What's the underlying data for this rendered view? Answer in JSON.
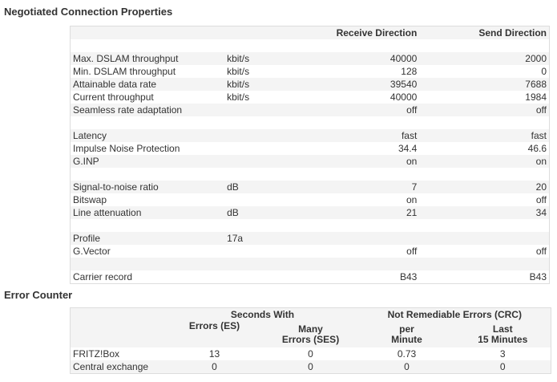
{
  "negotiated": {
    "title": "Negotiated Connection Properties",
    "headers": {
      "label": "",
      "unit": "",
      "receive": "Receive Direction",
      "send": "Send Direction"
    },
    "rows": [
      {
        "label": "",
        "unit": "",
        "rx": "",
        "tx": ""
      },
      {
        "label": "Max. DSLAM throughput",
        "unit": "kbit/s",
        "rx": "40000",
        "tx": "2000"
      },
      {
        "label": "Min. DSLAM throughput",
        "unit": "kbit/s",
        "rx": "128",
        "tx": "0"
      },
      {
        "label": "Attainable data rate",
        "unit": "kbit/s",
        "rx": "39540",
        "tx": "7688"
      },
      {
        "label": "Current throughput",
        "unit": "kbit/s",
        "rx": "40000",
        "tx": "1984"
      },
      {
        "label": "Seamless rate adaptation",
        "unit": "",
        "rx": "off",
        "tx": "off"
      },
      {
        "label": "",
        "unit": "",
        "rx": "",
        "tx": ""
      },
      {
        "label": "Latency",
        "unit": "",
        "rx": "fast",
        "tx": "fast"
      },
      {
        "label": "Impulse Noise Protection",
        "unit": "",
        "rx": "34.4",
        "tx": "46.6"
      },
      {
        "label": "G.INP",
        "unit": "",
        "rx": "on",
        "tx": "on"
      },
      {
        "label": "",
        "unit": "",
        "rx": "",
        "tx": ""
      },
      {
        "label": "Signal-to-noise ratio",
        "unit": "dB",
        "rx": "7",
        "tx": "20"
      },
      {
        "label": "Bitswap",
        "unit": "",
        "rx": "on",
        "tx": "off"
      },
      {
        "label": "Line attenuation",
        "unit": "dB",
        "rx": "21",
        "tx": "34"
      },
      {
        "label": "",
        "unit": "",
        "rx": "",
        "tx": ""
      },
      {
        "label": "Profile",
        "unit": "17a",
        "rx": "",
        "tx": ""
      },
      {
        "label": "G.Vector",
        "unit": "",
        "rx": "off",
        "tx": "off"
      },
      {
        "label": "",
        "unit": "",
        "rx": "",
        "tx": ""
      },
      {
        "label": "Carrier record",
        "unit": "",
        "rx": "B43",
        "tx": "B43"
      }
    ]
  },
  "errors": {
    "title": "Error Counter",
    "group1": "Seconds With",
    "group2": "Not Remediable Errors (CRC)",
    "col_es": "Errors (ES)",
    "col_ses_1": "Many",
    "col_ses_2": "Errors (SES)",
    "col_pm_1": "per",
    "col_pm_2": "Minute",
    "col_l15_1": "Last",
    "col_l15_2": "15 Minutes",
    "rows": [
      {
        "label": "FRITZ!Box",
        "es": "13",
        "ses": "0",
        "pm": "0.73",
        "l15": "3"
      },
      {
        "label": "Central exchange",
        "es": "0",
        "ses": "0",
        "pm": "0",
        "l15": "0"
      }
    ]
  }
}
